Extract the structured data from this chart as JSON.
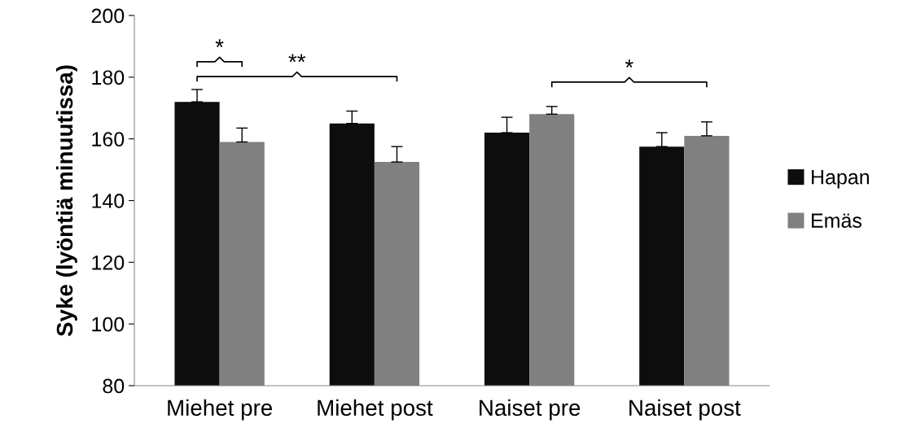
{
  "chart_data": {
    "type": "bar",
    "ylabel": "Syke (lyöntiä minuutissa)",
    "categories": [
      "Miehet pre",
      "Miehet post",
      "Naiset pre",
      "Naiset post"
    ],
    "series": [
      {
        "name": "Hapan",
        "color": "#0d0d0d",
        "values": [
          172,
          165,
          162,
          157.5
        ],
        "errors": [
          [
            172,
            176
          ],
          [
            165,
            169
          ],
          [
            162,
            167
          ],
          [
            157.5,
            162
          ]
        ]
      },
      {
        "name": "Emäs",
        "color": "#808080",
        "values": [
          159,
          152.5,
          168,
          161
        ],
        "errors": [
          [
            159,
            163.5
          ],
          [
            152.5,
            157.5
          ],
          [
            168,
            170.5
          ],
          [
            161,
            165.5
          ]
        ]
      }
    ],
    "ylim": [
      80,
      200
    ],
    "yticks": [
      80,
      100,
      120,
      140,
      160,
      180,
      200
    ],
    "grid": false,
    "legend": "right",
    "annotations": [
      "*",
      "**",
      "*"
    ]
  }
}
